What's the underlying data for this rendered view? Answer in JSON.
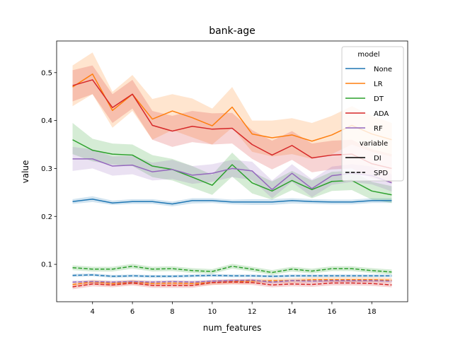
{
  "chart_data": {
    "type": "line",
    "title": "bank-age",
    "xlabel": "num_features",
    "ylabel": "value",
    "xlim": [
      2.2,
      19.8
    ],
    "ylim": [
      0.022,
      0.566
    ],
    "xticks": [
      4,
      6,
      8,
      10,
      12,
      14,
      16,
      18
    ],
    "yticks": [
      0.1,
      0.2,
      0.3,
      0.4,
      0.5
    ],
    "x": [
      3,
      4,
      5,
      6,
      7,
      8,
      9,
      10,
      11,
      12,
      13,
      14,
      15,
      16,
      17,
      18,
      19
    ],
    "legend": {
      "position": "top-right",
      "model_title": "model",
      "models": [
        {
          "name": "None",
          "color": "#1f77b4"
        },
        {
          "name": "LR",
          "color": "#ff7f0e"
        },
        {
          "name": "DT",
          "color": "#2ca02c"
        },
        {
          "name": "ADA",
          "color": "#d62728"
        },
        {
          "name": "RF",
          "color": "#9467bd"
        }
      ],
      "variable_title": "variable",
      "variables": [
        {
          "name": "DI",
          "dash": "solid"
        },
        {
          "name": "SPD",
          "dash": "dashed"
        }
      ]
    },
    "series": [
      {
        "model": "None",
        "variable": "DI",
        "color": "#1f77b4",
        "dash": "solid",
        "values": [
          0.231,
          0.236,
          0.228,
          0.231,
          0.231,
          0.226,
          0.233,
          0.233,
          0.23,
          0.23,
          0.23,
          0.233,
          0.231,
          0.23,
          0.23,
          0.233,
          0.233
        ],
        "lower": [
          0.226,
          0.23,
          0.224,
          0.226,
          0.226,
          0.221,
          0.227,
          0.228,
          0.225,
          0.224,
          0.224,
          0.227,
          0.226,
          0.225,
          0.225,
          0.228,
          0.228
        ],
        "upper": [
          0.236,
          0.242,
          0.233,
          0.236,
          0.236,
          0.231,
          0.238,
          0.238,
          0.235,
          0.236,
          0.236,
          0.238,
          0.236,
          0.235,
          0.235,
          0.238,
          0.238
        ]
      },
      {
        "model": "LR",
        "variable": "DI",
        "color": "#ff7f0e",
        "dash": "solid",
        "values": [
          0.47,
          0.497,
          0.421,
          0.455,
          0.403,
          0.42,
          0.406,
          0.389,
          0.428,
          0.372,
          0.364,
          0.37,
          0.357,
          0.37,
          0.39,
          0.372,
          0.36
        ],
        "lower": [
          0.43,
          0.455,
          0.385,
          0.42,
          0.36,
          0.38,
          0.365,
          0.35,
          0.385,
          0.335,
          0.325,
          0.33,
          0.32,
          0.33,
          0.35,
          0.335,
          0.325
        ],
        "upper": [
          0.515,
          0.542,
          0.46,
          0.495,
          0.445,
          0.455,
          0.446,
          0.425,
          0.47,
          0.4,
          0.4,
          0.405,
          0.395,
          0.41,
          0.43,
          0.41,
          0.395
        ]
      },
      {
        "model": "DT",
        "variable": "DI",
        "color": "#2ca02c",
        "dash": "solid",
        "values": [
          0.36,
          0.338,
          0.33,
          0.328,
          0.305,
          0.298,
          0.282,
          0.265,
          0.308,
          0.27,
          0.253,
          0.275,
          0.256,
          0.273,
          0.275,
          0.253,
          0.245
        ],
        "lower": [
          0.33,
          0.315,
          0.308,
          0.305,
          0.282,
          0.275,
          0.26,
          0.245,
          0.283,
          0.248,
          0.235,
          0.255,
          0.238,
          0.253,
          0.255,
          0.235,
          0.228
        ],
        "upper": [
          0.395,
          0.362,
          0.352,
          0.35,
          0.328,
          0.32,
          0.305,
          0.287,
          0.333,
          0.293,
          0.273,
          0.295,
          0.275,
          0.293,
          0.295,
          0.272,
          0.263
        ]
      },
      {
        "model": "ADA",
        "variable": "DI",
        "color": "#d62728",
        "dash": "solid",
        "values": [
          0.473,
          0.485,
          0.427,
          0.455,
          0.39,
          0.378,
          0.388,
          0.382,
          0.384,
          0.35,
          0.328,
          0.348,
          0.322,
          0.328,
          0.33,
          0.31,
          0.3
        ],
        "lower": [
          0.44,
          0.455,
          0.395,
          0.425,
          0.36,
          0.345,
          0.355,
          0.35,
          0.352,
          0.32,
          0.298,
          0.318,
          0.292,
          0.298,
          0.3,
          0.28,
          0.27
        ],
        "upper": [
          0.505,
          0.515,
          0.455,
          0.485,
          0.42,
          0.41,
          0.42,
          0.415,
          0.416,
          0.38,
          0.358,
          0.378,
          0.352,
          0.358,
          0.36,
          0.34,
          0.33
        ]
      },
      {
        "model": "RF",
        "variable": "DI",
        "color": "#9467bd",
        "dash": "solid",
        "values": [
          0.32,
          0.32,
          0.305,
          0.307,
          0.293,
          0.298,
          0.286,
          0.29,
          0.3,
          0.295,
          0.256,
          0.29,
          0.258,
          0.285,
          0.29,
          0.285,
          0.27
        ],
        "lower": [
          0.295,
          0.3,
          0.285,
          0.288,
          0.275,
          0.278,
          0.268,
          0.272,
          0.282,
          0.276,
          0.238,
          0.272,
          0.24,
          0.266,
          0.272,
          0.267,
          0.252
        ],
        "upper": [
          0.345,
          0.34,
          0.325,
          0.327,
          0.312,
          0.318,
          0.305,
          0.309,
          0.318,
          0.314,
          0.275,
          0.309,
          0.277,
          0.304,
          0.309,
          0.304,
          0.288
        ]
      },
      {
        "model": "None",
        "variable": "SPD",
        "color": "#1f77b4",
        "dash": "dashed",
        "values": [
          0.077,
          0.078,
          0.075,
          0.076,
          0.075,
          0.075,
          0.076,
          0.077,
          0.076,
          0.076,
          0.075,
          0.076,
          0.076,
          0.076,
          0.076,
          0.076,
          0.076
        ],
        "lower": [
          0.074,
          0.075,
          0.072,
          0.073,
          0.072,
          0.072,
          0.073,
          0.074,
          0.073,
          0.073,
          0.072,
          0.073,
          0.073,
          0.073,
          0.073,
          0.073,
          0.073
        ],
        "upper": [
          0.08,
          0.081,
          0.078,
          0.079,
          0.078,
          0.078,
          0.079,
          0.08,
          0.079,
          0.079,
          0.078,
          0.079,
          0.079,
          0.079,
          0.079,
          0.079,
          0.079
        ]
      },
      {
        "model": "LR",
        "variable": "SPD",
        "color": "#ff7f0e",
        "dash": "dashed",
        "values": [
          0.058,
          0.063,
          0.06,
          0.063,
          0.06,
          0.061,
          0.06,
          0.062,
          0.064,
          0.065,
          0.066,
          0.066,
          0.068,
          0.068,
          0.068,
          0.068,
          0.067
        ],
        "lower": [
          0.053,
          0.058,
          0.055,
          0.058,
          0.055,
          0.056,
          0.055,
          0.057,
          0.059,
          0.06,
          0.061,
          0.061,
          0.063,
          0.063,
          0.063,
          0.063,
          0.062
        ],
        "upper": [
          0.063,
          0.068,
          0.065,
          0.068,
          0.065,
          0.066,
          0.065,
          0.067,
          0.069,
          0.07,
          0.071,
          0.071,
          0.073,
          0.073,
          0.073,
          0.073,
          0.072
        ]
      },
      {
        "model": "DT",
        "variable": "SPD",
        "color": "#2ca02c",
        "dash": "dashed",
        "values": [
          0.093,
          0.09,
          0.09,
          0.096,
          0.09,
          0.091,
          0.087,
          0.085,
          0.096,
          0.09,
          0.083,
          0.09,
          0.086,
          0.091,
          0.091,
          0.087,
          0.084
        ],
        "lower": [
          0.088,
          0.085,
          0.085,
          0.091,
          0.085,
          0.086,
          0.082,
          0.08,
          0.091,
          0.085,
          0.078,
          0.085,
          0.081,
          0.086,
          0.086,
          0.082,
          0.079
        ],
        "upper": [
          0.098,
          0.095,
          0.095,
          0.101,
          0.095,
          0.096,
          0.092,
          0.09,
          0.101,
          0.095,
          0.088,
          0.095,
          0.091,
          0.096,
          0.096,
          0.092,
          0.089
        ]
      },
      {
        "model": "ADA",
        "variable": "SPD",
        "color": "#d62728",
        "dash": "dashed",
        "values": [
          0.053,
          0.059,
          0.057,
          0.061,
          0.056,
          0.056,
          0.056,
          0.062,
          0.063,
          0.062,
          0.057,
          0.059,
          0.058,
          0.061,
          0.061,
          0.06,
          0.057
        ],
        "lower": [
          0.048,
          0.054,
          0.052,
          0.056,
          0.051,
          0.051,
          0.051,
          0.057,
          0.058,
          0.057,
          0.052,
          0.054,
          0.053,
          0.056,
          0.056,
          0.055,
          0.052
        ],
        "upper": [
          0.058,
          0.064,
          0.062,
          0.066,
          0.061,
          0.061,
          0.061,
          0.067,
          0.068,
          0.067,
          0.062,
          0.064,
          0.063,
          0.066,
          0.066,
          0.065,
          0.062
        ]
      },
      {
        "model": "RF",
        "variable": "SPD",
        "color": "#9467bd",
        "dash": "dashed",
        "values": [
          0.063,
          0.064,
          0.063,
          0.064,
          0.063,
          0.064,
          0.063,
          0.065,
          0.066,
          0.067,
          0.063,
          0.066,
          0.065,
          0.066,
          0.066,
          0.066,
          0.065
        ],
        "lower": [
          0.06,
          0.061,
          0.06,
          0.061,
          0.06,
          0.061,
          0.06,
          0.062,
          0.063,
          0.064,
          0.06,
          0.063,
          0.062,
          0.063,
          0.063,
          0.063,
          0.062
        ],
        "upper": [
          0.066,
          0.067,
          0.066,
          0.067,
          0.066,
          0.067,
          0.066,
          0.068,
          0.069,
          0.07,
          0.066,
          0.069,
          0.068,
          0.069,
          0.069,
          0.069,
          0.068
        ]
      }
    ]
  }
}
